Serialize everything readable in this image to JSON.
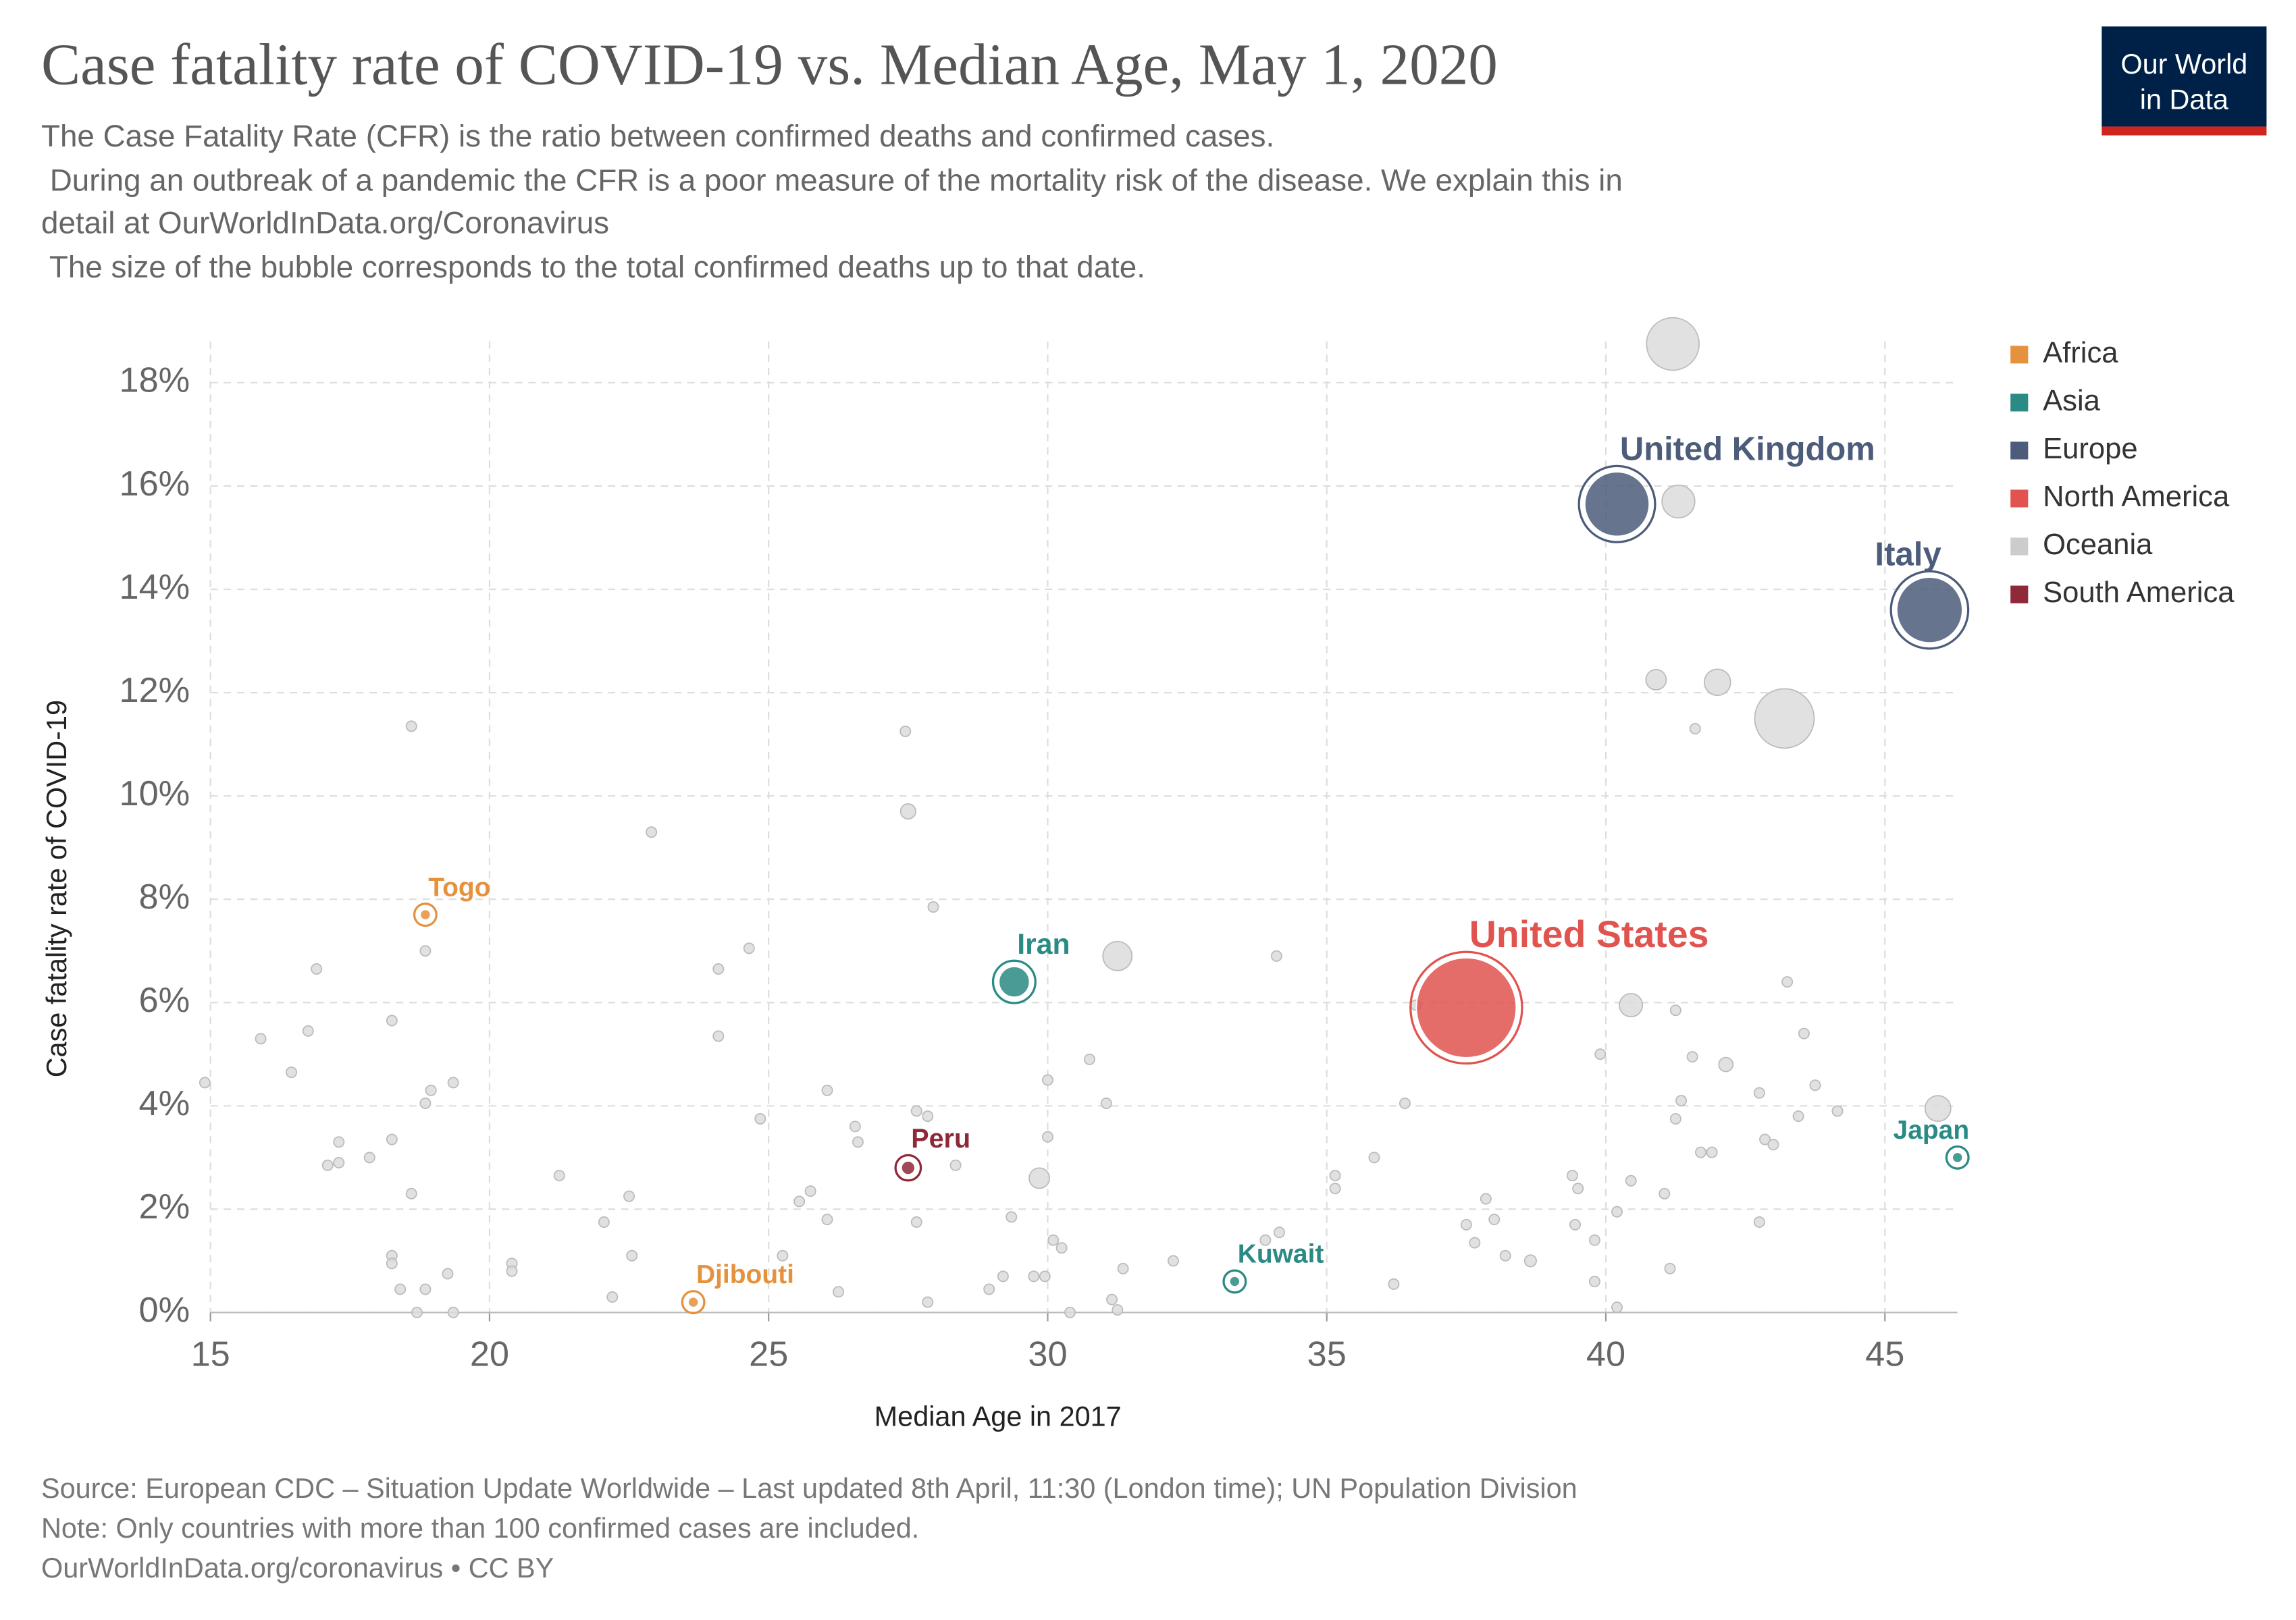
{
  "chart_data": {
    "type": "bubble",
    "title": "Case fatality rate of COVID-19 vs. Median Age, May 1, 2020",
    "subtitle": [
      "The Case Fatality Rate (CFR) is the ratio between confirmed deaths and confirmed cases.",
      " During an outbreak of a pandemic the CFR is a poor measure of the mortality risk of the disease. We explain this in",
      "detail at OurWorldInData.org/Coronavirus",
      " The size of the bubble corresponds to the total confirmed deaths up to that date."
    ],
    "logo": [
      "Our World",
      "in Data"
    ],
    "x_label": "Median Age in 2017",
    "y_label": "Case fatality rate of COVID-19",
    "source": [
      "Source: European CDC – Situation Update Worldwide – Last updated 8th April, 11:30 (London time); UN Population Division",
      "Note: Only countries with more than 100 confirmed cases are included.",
      "OurWorldInData.org/coronavirus • CC BY"
    ],
    "xlim": [
      15,
      46.3
    ],
    "ylim": [
      0,
      18.8
    ],
    "xticks": [
      15,
      20,
      25,
      30,
      35,
      40,
      45
    ],
    "yticks": [
      {
        "value": 0,
        "label": "0%"
      },
      {
        "value": 2,
        "label": "2%"
      },
      {
        "value": 4,
        "label": "4%"
      },
      {
        "value": 6,
        "label": "6%"
      },
      {
        "value": 8,
        "label": "8%"
      },
      {
        "value": 10,
        "label": "10%"
      },
      {
        "value": 12,
        "label": "12%"
      },
      {
        "value": 14,
        "label": "14%"
      },
      {
        "value": 16,
        "label": "16%"
      },
      {
        "value": 18,
        "label": "18%"
      }
    ],
    "grid": true,
    "legend": "right",
    "series": [
      {
        "name": "Africa",
        "color": "#e5913d",
        "labels": [
          "Togo",
          "Djibouti"
        ],
        "x": [
          18.85,
          23.65
        ],
        "values": [
          7.7,
          0.2
        ],
        "sizes": [
          10,
          2
        ]
      },
      {
        "name": "Asia",
        "color": "#2a8a84",
        "labels": [
          "Iran",
          "Kuwait",
          "Japan"
        ],
        "x": [
          29.4,
          33.35,
          46.3
        ],
        "values": [
          6.4,
          0.6,
          3.0
        ],
        "sizes": [
          6100,
          33,
          450
        ]
      },
      {
        "name": "Europe",
        "color": "#4c5c7a",
        "labels": [
          "United Kingdom",
          "Italy"
        ],
        "x": [
          40.2,
          45.8
        ],
        "values": [
          15.65,
          13.6
        ],
        "sizes": [
          27000,
          28000
        ]
      },
      {
        "name": "North America",
        "color": "#e0534f",
        "labels": [
          "United States"
        ],
        "x": [
          37.5
        ],
        "values": [
          5.9
        ],
        "sizes": [
          65000
        ]
      },
      {
        "name": "Oceania",
        "color": "#cccccc",
        "labels": [],
        "x": [],
        "values": [],
        "sizes": []
      },
      {
        "name": "South America",
        "color": "#8f2838",
        "labels": [
          "Peru"
        ],
        "x": [
          27.5
        ],
        "values": [
          2.8
        ],
        "sizes": [
          1200
        ]
      }
    ],
    "other_points": {
      "color": "#dcdcdc",
      "x": [
        41.2,
        41.3,
        43.2,
        42.0,
        40.9,
        41.6,
        18.6,
        27.45,
        27.5,
        27.95,
        22.9,
        31.25,
        40.45,
        41.25,
        45.95,
        42.15,
        41.55,
        29.85,
        38.65,
        14.9,
        15.9,
        16.45,
        16.9,
        16.75,
        17.1,
        17.3,
        17.3,
        17.85,
        18.25,
        18.25,
        18.25,
        18.25,
        18.4,
        18.6,
        18.7,
        18.85,
        18.85,
        18.95,
        18.85,
        19.25,
        19.35,
        19.35,
        20.4,
        20.4,
        21.25,
        22.05,
        22.2,
        22.5,
        22.55,
        24.1,
        24.1,
        24.65,
        24.85,
        25.25,
        25.55,
        25.75,
        26.05,
        26.05,
        26.25,
        26.55,
        26.6,
        27.65,
        27.85,
        27.65,
        28.35,
        27.85,
        28.95,
        29.2,
        29.35,
        29.75,
        29.95,
        30.0,
        30.0,
        30.1,
        30.25,
        30.4,
        30.75,
        31.05,
        31.15,
        31.25,
        31.35,
        32.25,
        34.1,
        33.9,
        34.15,
        35.15,
        35.15,
        35.85,
        36.4,
        36.2,
        36.6,
        37.5,
        37.65,
        37.85,
        38.0,
        38.2,
        39.4,
        39.5,
        39.45,
        39.8,
        39.8,
        39.9,
        40.2,
        40.45,
        40.2,
        41.05,
        41.25,
        41.35,
        41.15,
        41.7,
        41.9,
        42.75,
        42.85,
        43.0,
        43.25,
        43.45,
        43.55,
        43.75,
        44.15,
        42.75
      ],
      "values": [
        18.75,
        15.7,
        11.5,
        12.2,
        12.25,
        11.3,
        11.35,
        11.25,
        9.7,
        7.85,
        9.3,
        6.9,
        5.95,
        5.85,
        3.95,
        4.8,
        4.95,
        2.6,
        1.0,
        4.45,
        5.3,
        4.65,
        6.65,
        5.45,
        2.85,
        3.3,
        2.9,
        3.0,
        5.65,
        3.35,
        1.1,
        0.95,
        0.45,
        2.3,
        0,
        7.0,
        4.05,
        4.3,
        0.45,
        0.75,
        4.45,
        0,
        0.95,
        0.8,
        2.65,
        1.75,
        0.3,
        2.25,
        1.1,
        6.65,
        5.35,
        7.05,
        3.75,
        1.1,
        2.15,
        2.35,
        4.3,
        1.8,
        0.4,
        3.6,
        3.3,
        3.9,
        3.8,
        1.75,
        2.85,
        0.2,
        0.45,
        0.7,
        1.85,
        0.7,
        0.7,
        4.5,
        3.4,
        1.4,
        1.25,
        0,
        4.9,
        4.05,
        0.25,
        0.05,
        0.85,
        1.0,
        6.9,
        1.4,
        1.55,
        2.65,
        2.4,
        3.0,
        4.05,
        0.55,
        5.95,
        1.7,
        1.35,
        2.2,
        1.8,
        1.1,
        2.65,
        2.4,
        1.7,
        1.4,
        0.6,
        5.0,
        1.95,
        2.55,
        0.1,
        2.3,
        3.75,
        4.1,
        0.85,
        3.1,
        3.1,
        4.25,
        3.35,
        3.25,
        6.4,
        3.8,
        5.4,
        4.4,
        3.9,
        1.75
      ],
      "sizes": [
        18000,
        7000,
        23000,
        4500,
        2700,
        100,
        20,
        60,
        1500,
        300,
        20,
        5500,
        3500,
        300,
        4300,
        1300,
        150,
        2700,
        900,
        20,
        20,
        20,
        20,
        20,
        20,
        20,
        20,
        20,
        20,
        20,
        20,
        20,
        20,
        20,
        20,
        20,
        20,
        20,
        20,
        20,
        20,
        20,
        20,
        20,
        20,
        20,
        20,
        200,
        20,
        150,
        20,
        150,
        20,
        20,
        20,
        20,
        150,
        20,
        20,
        300,
        300,
        20,
        20,
        20,
        20,
        20,
        20,
        20,
        20,
        20,
        20,
        20,
        20,
        20,
        20,
        20,
        20,
        20,
        20,
        20,
        20,
        20,
        20,
        20,
        20,
        20,
        20,
        20,
        20,
        20,
        20,
        20,
        20,
        20,
        20,
        20,
        20,
        20,
        20,
        20,
        20,
        300,
        300,
        20,
        20,
        200,
        20,
        20,
        20,
        150,
        20,
        20,
        20,
        20,
        20,
        300,
        20,
        20,
        300,
        20
      ]
    }
  }
}
